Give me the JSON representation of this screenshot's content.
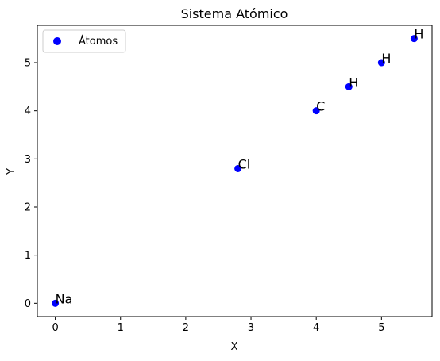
{
  "chart_data": {
    "type": "scatter",
    "title": "Sistema Atómico",
    "xlabel": "X",
    "ylabel": "Y",
    "xlim": [
      -0.275,
      5.775
    ],
    "ylim": [
      -0.275,
      5.775
    ],
    "xticks": [
      0,
      1,
      2,
      3,
      4,
      5
    ],
    "yticks": [
      0,
      1,
      2,
      3,
      4,
      5
    ],
    "grid": false,
    "legend_position": "upper-left",
    "series": [
      {
        "name": "Átomos",
        "color": "#0000ff",
        "points": [
          {
            "x": 0,
            "y": 0,
            "label": "Na"
          },
          {
            "x": 2.8,
            "y": 2.8,
            "label": "Cl"
          },
          {
            "x": 4,
            "y": 4,
            "label": "C"
          },
          {
            "x": 4.5,
            "y": 4.5,
            "label": "H"
          },
          {
            "x": 5,
            "y": 5,
            "label": "H"
          },
          {
            "x": 5.5,
            "y": 5.5,
            "label": "H"
          }
        ]
      }
    ]
  }
}
